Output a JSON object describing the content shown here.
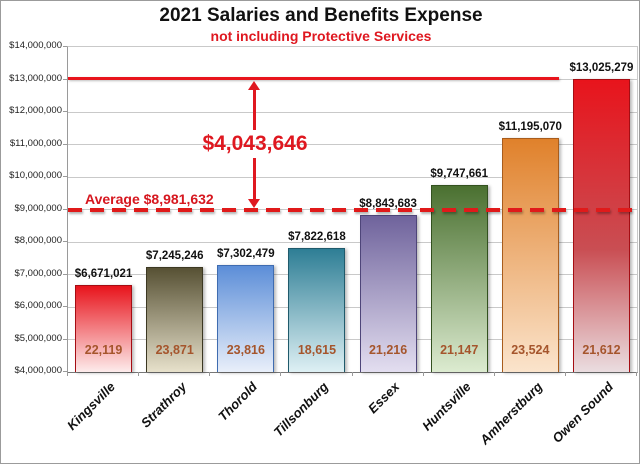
{
  "chart_data": {
    "type": "bar",
    "title": "2021 Salaries and Benefits Expense",
    "subtitle": "not including Protective Services",
    "accent_red": "#df1820",
    "ylim": [
      4000000,
      14000000
    ],
    "ytick_step": 1000000,
    "ytick_labels": [
      "$14,000,000",
      "$13,000,000",
      "$12,000,000",
      "$11,000,000",
      "$10,000,000",
      "$9,000,000",
      "$8,000,000",
      "$7,000,000",
      "$6,000,000",
      "$5,000,000",
      "$4,000,000"
    ],
    "grid": "horizontal",
    "legend": "none",
    "categories": [
      "Kingsville",
      "Strathroy",
      "Thorold",
      "Tillsonburg",
      "Essex",
      "Huntsville",
      "Amherstburg",
      "Owen Sound"
    ],
    "bars": [
      {
        "name": "Kingsville",
        "value": 6671021,
        "value_label": "$6,671,021",
        "population_label": "22,119",
        "color_top": "#e8141c",
        "color_bottom": "#fdecec",
        "border": "#a50d13"
      },
      {
        "name": "Strathroy",
        "value": 7245246,
        "value_label": "$7,245,246",
        "population_label": "23,871",
        "color_top": "#575134",
        "color_bottom": "#e7e1cb",
        "border": "#3c3822"
      },
      {
        "name": "Thorold",
        "value": 7302479,
        "value_label": "$7,302,479",
        "population_label": "23,816",
        "color_top": "#5c8ed8",
        "color_bottom": "#e9effa",
        "border": "#3f6cb0"
      },
      {
        "name": "Tillsonburg",
        "value": 7822618,
        "value_label": "$7,822,618",
        "population_label": "18,615",
        "color_top": "#2e7e95",
        "color_bottom": "#def0f4",
        "border": "#1f5a6b"
      },
      {
        "name": "Essex",
        "value": 8843683,
        "value_label": "$8,843,683",
        "population_label": "21,216",
        "color_top": "#6f639c",
        "color_bottom": "#e3def0",
        "border": "#4e4579"
      },
      {
        "name": "Huntsville",
        "value": 9747661,
        "value_label": "$9,747,661",
        "population_label": "21,147",
        "color_top": "#4a7030",
        "color_bottom": "#dcebd0",
        "border": "#33511f"
      },
      {
        "name": "Amherstburg",
        "value": 11195070,
        "value_label": "$11,195,070",
        "population_label": "23,524",
        "color_top": "#e0812b",
        "color_bottom": "#fbe4cc",
        "border": "#a85c1c"
      },
      {
        "name": "Owen Sound",
        "value": 13025279,
        "value_label": "$13,025,279",
        "population_label": "21,612",
        "color_top": "#e8141c",
        "color_mid": "#c94e53",
        "color_bottom": "#eadde0",
        "border": "#a50d13"
      }
    ],
    "average_line": {
      "value": 8981632,
      "label": "Average $8,981,632",
      "style": "dashed",
      "color": "#e01a1a"
    },
    "max_line": {
      "value": 13025279,
      "style": "solid",
      "color": "#e8141c"
    },
    "difference_annotation": {
      "label": "$4,043,646",
      "from_value": 8981632,
      "to_value": 13025279
    }
  }
}
